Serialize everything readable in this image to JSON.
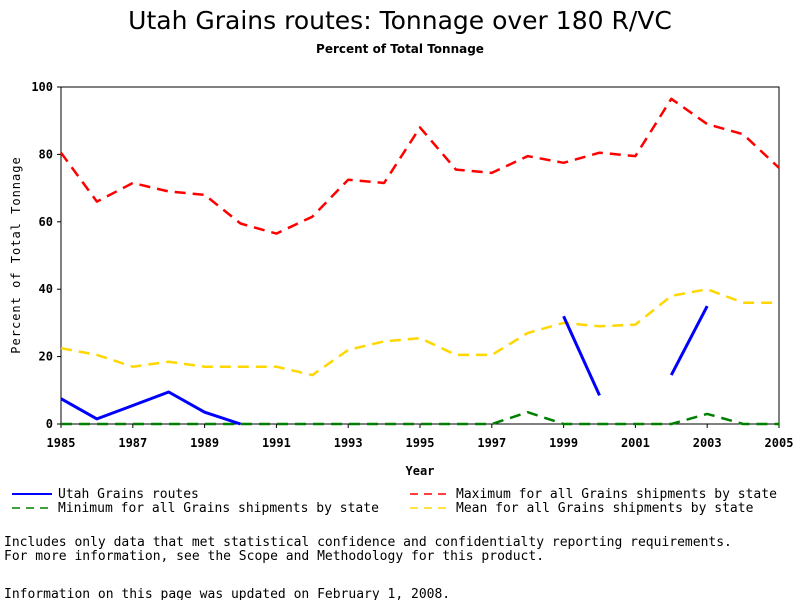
{
  "chart_data": {
    "type": "line",
    "title": "Utah Grains routes: Tonnage over 180 R/VC",
    "subtitle": "Percent of Total Tonnage",
    "xlabel": "Year",
    "ylabel": "Percent of Total Tonnage",
    "xlim": [
      1985,
      2005
    ],
    "ylim": [
      0,
      100
    ],
    "x_ticks": [
      "1985",
      "1987",
      "1989",
      "1991",
      "1993",
      "1995",
      "1997",
      "1999",
      "2001",
      "2003",
      "2005"
    ],
    "y_ticks": [
      "0",
      "20",
      "40",
      "60",
      "80",
      "100"
    ],
    "grid": false,
    "legend_position": "bottom",
    "x": [
      1985,
      1986,
      1987,
      1988,
      1989,
      1990,
      1991,
      1992,
      1993,
      1994,
      1995,
      1996,
      1997,
      1998,
      1999,
      2000,
      2001,
      2002,
      2003,
      2004,
      2005
    ],
    "series": [
      {
        "name": "Utah Grains routes",
        "color": "#0000ff",
        "style": "solid",
        "values": [
          7.5,
          1.5,
          5.5,
          9.5,
          3.5,
          0,
          null,
          null,
          null,
          null,
          null,
          null,
          null,
          null,
          32,
          8.5,
          null,
          14.5,
          35,
          null,
          null
        ]
      },
      {
        "name": "Maximum for all Grains shipments by state",
        "color": "#ff0000",
        "style": "dashed",
        "values": [
          80.5,
          66,
          71.5,
          69,
          68,
          59.5,
          56.5,
          61.5,
          72.5,
          71.5,
          88,
          75.5,
          74.5,
          79.5,
          77.5,
          80.5,
          79.5,
          96.5,
          89,
          86,
          76
        ]
      },
      {
        "name": "Minimum for all Grains shipments by state",
        "color": "#008000",
        "style": "dashed",
        "values": [
          0,
          0,
          0,
          0,
          0,
          0,
          0,
          0,
          0,
          0,
          0,
          0,
          0,
          3.5,
          0,
          0,
          0,
          0,
          3,
          0,
          0
        ]
      },
      {
        "name": "Mean for all Grains shipments by state",
        "color": "#ffd700",
        "style": "dashed",
        "values": [
          22.5,
          20.5,
          17,
          18.5,
          17,
          17,
          17,
          14.5,
          22,
          24.5,
          25.5,
          20.5,
          20.5,
          27,
          30,
          29,
          29.5,
          38,
          40,
          36,
          36
        ]
      }
    ]
  },
  "notes": {
    "line1": "Includes only data that met statistical confidence and confidentialty reporting requirements.",
    "line2": "For more information, see the Scope and Methodology for this product.",
    "line3": "Information on this page was updated on February 1, 2008."
  }
}
